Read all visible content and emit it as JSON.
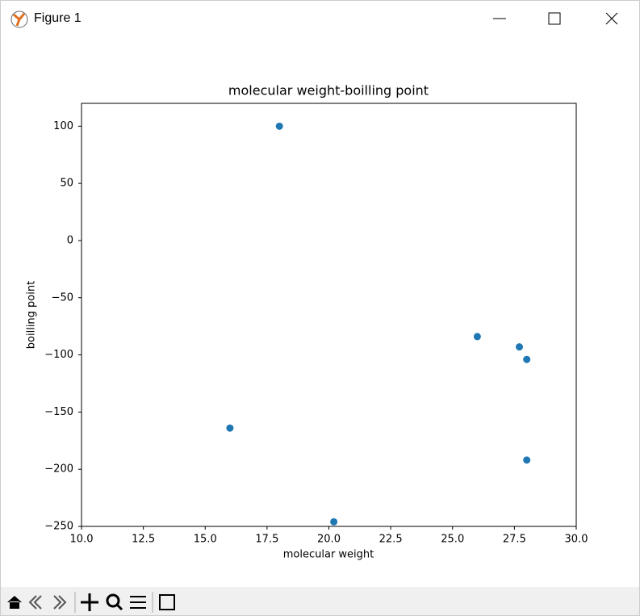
{
  "window": {
    "title": "Figure 1"
  },
  "chart_data": {
    "type": "scatter",
    "title": "molecular weight-boilling point",
    "x_label": "molecular weight",
    "y_label": "boilling point",
    "x": [
      18.0,
      16.0,
      20.2,
      26.0,
      27.7,
      28.0,
      28.0
    ],
    "values": [
      100,
      -164,
      -246,
      -84,
      -93,
      -104,
      -192
    ],
    "color": "#1f77b4",
    "xlim": [
      10,
      30
    ],
    "xticks": [
      {
        "value": 10,
        "label": "10.0"
      },
      12.5,
      {
        "value": 15,
        "label": "15.0"
      },
      17.5,
      {
        "value": 20,
        "label": "20.0"
      },
      22.5,
      {
        "value": 25,
        "label": "25.0"
      },
      27.5,
      {
        "value": 30,
        "label": "30.0"
      }
    ],
    "ylim": [
      -250,
      120
    ],
    "yticks": [
      {
        "value": -250,
        "label": "−250"
      },
      {
        "value": -200,
        "label": "−200"
      },
      {
        "value": -150,
        "label": "−150"
      },
      {
        "value": -100,
        "label": "−100"
      },
      {
        "value": -50,
        "label": "−50"
      },
      0,
      50,
      100
    ],
    "grid": false
  }
}
